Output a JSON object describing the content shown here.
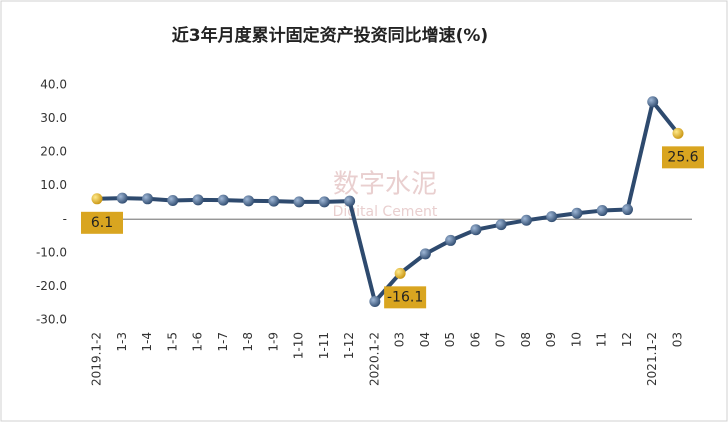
{
  "chart_data": {
    "type": "line",
    "title": "近3年月度累计固定资产投资同比增速(%)",
    "watermark": [
      "数字水泥",
      "Digital Cement"
    ],
    "categories": [
      "2019.1-2",
      "1-3",
      "1-4",
      "1-5",
      "1-6",
      "1-7",
      "1-8",
      "1-9",
      "1-10",
      "1-11",
      "1-12",
      "2020.1-2",
      "03",
      "04",
      "05",
      "06",
      "07",
      "08",
      "09",
      "10",
      "11",
      "12",
      "2021.1-2",
      "03"
    ],
    "series": [
      {
        "name": "同比增速",
        "color": "#2e4a6e",
        "highlight_color": "#d9a520",
        "values": [
          6.1,
          6.3,
          6.1,
          5.6,
          5.8,
          5.7,
          5.5,
          5.4,
          5.2,
          5.2,
          5.4,
          -24.5,
          -16.1,
          -10.3,
          -6.3,
          -3.1,
          -1.6,
          -0.3,
          0.8,
          1.8,
          2.6,
          2.9,
          35.0,
          25.6
        ],
        "value_labels": [
          "6.1",
          null,
          null,
          null,
          null,
          null,
          null,
          null,
          null,
          null,
          null,
          null,
          "-16.1",
          null,
          null,
          null,
          null,
          null,
          null,
          null,
          null,
          null,
          null,
          "25.6"
        ]
      }
    ],
    "ylim": [
      -30,
      40
    ],
    "yticks": [
      {
        "value": -30,
        "label": "-30.0"
      },
      {
        "value": -20,
        "label": "-20.0"
      },
      {
        "value": -10,
        "label": "-10.0"
      },
      {
        "value": 0,
        "label": "-"
      },
      {
        "value": 10,
        "label": "10.0"
      },
      {
        "value": 20,
        "label": "20.0"
      },
      {
        "value": 30,
        "label": "30.0"
      },
      {
        "value": 40,
        "label": "40.0"
      }
    ],
    "grid": false
  }
}
